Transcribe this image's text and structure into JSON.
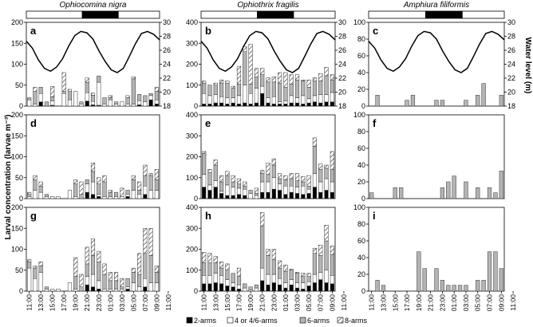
{
  "chart_data": {
    "type": "bar",
    "stacked": true,
    "ylabel": "Larval concentration (larvae m⁻³)",
    "ylabel_right": "Water level (m)",
    "columns": [
      "Ophiocomina nigra",
      "Ophiothrix fragilis",
      "Amphiura filiformis"
    ],
    "x_tick_labels": [
      "11:00",
      "13:00",
      "15:00",
      "17:00",
      "19:00",
      "21:00",
      "23:00",
      "01:00",
      "03:00",
      "05:00",
      "07:00",
      "09:00",
      "11:00"
    ],
    "legend": [
      "2-arms",
      "4 or 4/6-arms",
      "6-arms",
      "8-arms"
    ],
    "colors": {
      "2-arms": "#000000",
      "4 or 4/6-arms": "#ffffff",
      "6-arms": "#b4b4b4",
      "8-arms": "hatched"
    },
    "water_level_axis": {
      "ylim": [
        18,
        30
      ],
      "ticks": [
        18,
        20,
        22,
        24,
        26,
        28,
        30
      ]
    },
    "water_level_curve": [
      27.3,
      26.3,
      24.6,
      23.4,
      23,
      23.6,
      24.8,
      26.6,
      28.1,
      28.7,
      28.5,
      27.6,
      25.9,
      24.4,
      23.2,
      22.8,
      23.4,
      25.1,
      26.9,
      28.4,
      28.7,
      28.3,
      27.5
    ],
    "day_night_bar": [
      "day",
      "night",
      "day"
    ],
    "panels": [
      {
        "letter": "a",
        "ylim": [
          0,
          200
        ],
        "ticks": [
          0,
          50,
          100,
          150,
          200
        ],
        "series": {
          "2-arms": [
            0,
            0,
            10,
            0,
            2,
            0,
            0,
            0,
            0,
            0,
            12,
            3,
            2,
            0,
            0,
            0,
            0,
            0,
            0,
            3,
            0,
            15,
            5
          ],
          "4 or 4/6-arms": [
            15,
            5,
            20,
            0,
            10,
            0,
            30,
            15,
            35,
            5,
            20,
            8,
            55,
            5,
            15,
            5,
            10,
            5,
            5,
            10,
            10,
            10,
            10
          ],
          "6-arms": [
            5,
            30,
            15,
            10,
            10,
            0,
            5,
            20,
            0,
            5,
            25,
            15,
            15,
            15,
            5,
            5,
            0,
            15,
            60,
            15,
            15,
            5,
            20
          ],
          "8-arms": [
            0,
            10,
            0,
            0,
            25,
            0,
            45,
            5,
            0,
            0,
            10,
            5,
            0,
            0,
            5,
            0,
            0,
            5,
            5,
            0,
            0,
            0,
            10
          ]
        }
      },
      {
        "letter": "b",
        "ylim": [
          0,
          400
        ],
        "ticks": [
          0,
          100,
          200,
          300,
          400
        ],
        "series": {
          "2-arms": [
            10,
            10,
            15,
            15,
            10,
            15,
            10,
            15,
            10,
            15,
            60,
            15,
            10,
            10,
            10,
            15,
            15,
            10,
            15,
            20,
            15,
            20,
            20
          ],
          "4 or 4/6-arms": [
            50,
            40,
            40,
            30,
            30,
            25,
            40,
            85,
            50,
            70,
            35,
            25,
            35,
            10,
            15,
            35,
            25,
            40,
            20,
            30,
            40,
            35,
            45
          ],
          "6-arms": [
            50,
            50,
            45,
            65,
            70,
            45,
            55,
            160,
            45,
            55,
            55,
            75,
            70,
            90,
            65,
            55,
            85,
            70,
            55,
            70,
            65,
            90,
            60
          ],
          "8-arms": [
            10,
            0,
            10,
            15,
            10,
            10,
            85,
            25,
            190,
            40,
            30,
            20,
            25,
            50,
            70,
            45,
            25,
            5,
            35,
            15,
            35,
            40,
            25
          ]
        }
      },
      {
        "letter": "c",
        "ylim": [
          0,
          100
        ],
        "ticks": [
          0,
          20,
          40,
          60,
          80,
          100
        ],
        "series": {
          "2-arms": [
            0,
            0,
            0,
            0,
            0,
            0,
            0,
            0,
            0,
            0,
            0,
            0,
            0,
            0,
            0,
            0,
            0,
            0,
            0,
            0,
            0,
            0,
            0
          ],
          "4 or 4/6-arms": [
            0,
            0,
            0,
            0,
            0,
            0,
            0,
            0,
            0,
            0,
            0,
            0,
            0,
            0,
            0,
            0,
            0,
            0,
            0,
            0,
            0,
            0,
            0
          ],
          "6-arms": [
            0,
            13,
            0,
            0,
            0,
            0,
            7,
            13,
            0,
            0,
            0,
            7,
            7,
            0,
            0,
            0,
            7,
            0,
            13,
            27,
            0,
            0,
            13
          ],
          "8-arms": [
            0,
            0,
            0,
            0,
            0,
            0,
            0,
            0,
            0,
            0,
            0,
            0,
            0,
            0,
            0,
            0,
            0,
            0,
            0,
            0,
            0,
            0,
            0
          ]
        }
      },
      {
        "letter": "d",
        "ylim": [
          0,
          200
        ],
        "ticks": [
          0,
          50,
          100,
          150,
          200
        ],
        "series": {
          "2-arms": [
            0,
            0,
            0,
            0,
            0,
            0,
            0,
            0,
            0,
            0,
            15,
            10,
            5,
            0,
            0,
            0,
            0,
            5,
            0,
            0,
            10,
            0,
            0
          ],
          "4 or 4/6-arms": [
            5,
            20,
            15,
            5,
            5,
            5,
            0,
            20,
            5,
            0,
            20,
            30,
            5,
            5,
            5,
            5,
            5,
            5,
            20,
            10,
            20,
            20,
            20
          ],
          "6-arms": [
            5,
            25,
            15,
            5,
            0,
            0,
            0,
            0,
            30,
            10,
            10,
            25,
            25,
            35,
            10,
            10,
            0,
            10,
            25,
            10,
            25,
            35,
            25
          ],
          "8-arms": [
            5,
            10,
            10,
            0,
            0,
            0,
            0,
            0,
            10,
            30,
            0,
            20,
            15,
            15,
            5,
            0,
            20,
            0,
            10,
            20,
            25,
            5,
            25
          ]
        }
      },
      {
        "letter": "e",
        "ylim": [
          0,
          400
        ],
        "ticks": [
          0,
          100,
          200,
          300,
          400
        ],
        "series": {
          "2-arms": [
            55,
            40,
            55,
            25,
            15,
            15,
            20,
            15,
            0,
            0,
            30,
            30,
            45,
            40,
            20,
            30,
            25,
            20,
            25,
            55,
            30,
            40,
            30
          ],
          "4 or 4/6-arms": [
            60,
            25,
            30,
            10,
            50,
            40,
            30,
            30,
            25,
            15,
            50,
            50,
            55,
            30,
            40,
            30,
            30,
            40,
            20,
            65,
            50,
            55,
            50
          ],
          "6-arms": [
            100,
            60,
            75,
            45,
            45,
            25,
            20,
            15,
            15,
            10,
            40,
            35,
            60,
            25,
            30,
            35,
            30,
            20,
            15,
            130,
            60,
            50,
            60
          ],
          "8-arms": [
            10,
            15,
            25,
            30,
            20,
            30,
            25,
            20,
            0,
            25,
            15,
            55,
            30,
            25,
            20,
            25,
            35,
            25,
            50,
            40,
            25,
            15,
            85
          ]
        }
      },
      {
        "letter": "f",
        "ylim": [
          0,
          100
        ],
        "ticks": [
          0,
          20,
          40,
          60,
          80,
          100
        ],
        "series": {
          "2-arms": [
            0,
            0,
            0,
            0,
            0,
            0,
            0,
            0,
            0,
            0,
            0,
            0,
            0,
            0,
            0,
            0,
            0,
            0,
            0,
            0,
            0,
            0,
            0
          ],
          "4 or 4/6-arms": [
            0,
            0,
            0,
            0,
            0,
            0,
            0,
            0,
            0,
            0,
            0,
            0,
            0,
            0,
            0,
            0,
            0,
            0,
            0,
            0,
            0,
            0,
            0
          ],
          "6-arms": [
            7,
            0,
            0,
            0,
            13,
            13,
            0,
            0,
            0,
            0,
            0,
            0,
            13,
            20,
            27,
            0,
            20,
            0,
            13,
            0,
            13,
            7,
            33
          ],
          "8-arms": [
            0,
            0,
            0,
            0,
            0,
            0,
            0,
            0,
            0,
            0,
            0,
            0,
            0,
            0,
            0,
            0,
            0,
            0,
            0,
            0,
            0,
            0,
            0
          ]
        }
      },
      {
        "letter": "g",
        "ylim": [
          0,
          200
        ],
        "ticks": [
          0,
          50,
          100,
          150,
          200
        ],
        "series": {
          "2-arms": [
            0,
            0,
            0,
            0,
            0,
            0,
            0,
            0,
            0,
            0,
            15,
            10,
            5,
            0,
            0,
            0,
            0,
            5,
            0,
            0,
            10,
            0,
            0
          ],
          "4 or 4/6-arms": [
            55,
            30,
            45,
            5,
            5,
            5,
            0,
            20,
            5,
            0,
            20,
            30,
            20,
            5,
            5,
            5,
            5,
            5,
            20,
            10,
            20,
            20,
            20
          ],
          "6-arms": [
            15,
            25,
            15,
            5,
            0,
            0,
            0,
            0,
            30,
            10,
            30,
            45,
            45,
            35,
            20,
            20,
            5,
            20,
            25,
            30,
            60,
            65,
            25
          ],
          "8-arms": [
            5,
            5,
            10,
            0,
            0,
            0,
            0,
            0,
            45,
            30,
            40,
            40,
            25,
            25,
            20,
            20,
            20,
            0,
            10,
            50,
            60,
            65,
            15
          ]
        }
      },
      {
        "letter": "h",
        "ylim": [
          0,
          400
        ],
        "ticks": [
          0,
          100,
          200,
          300,
          400
        ],
        "series": {
          "2-arms": [
            35,
            35,
            40,
            35,
            25,
            20,
            10,
            0,
            0,
            0,
            50,
            30,
            40,
            30,
            15,
            30,
            15,
            10,
            25,
            40,
            55,
            40,
            35
          ],
          "4 or 4/6-arms": [
            40,
            40,
            45,
            40,
            30,
            20,
            20,
            15,
            5,
            15,
            60,
            50,
            40,
            30,
            25,
            25,
            25,
            30,
            20,
            40,
            35,
            60,
            40
          ],
          "6-arms": [
            60,
            60,
            50,
            35,
            45,
            45,
            40,
            20,
            15,
            15,
            200,
            90,
            70,
            50,
            55,
            45,
            45,
            30,
            25,
            100,
            80,
            140,
            100
          ],
          "8-arms": [
            50,
            45,
            30,
            30,
            30,
            0,
            40,
            0,
            0,
            0,
            65,
            30,
            50,
            35,
            30,
            5,
            5,
            15,
            15,
            25,
            50,
            75,
            40
          ]
        }
      },
      {
        "letter": "i",
        "ylim": [
          0,
          100
        ],
        "ticks": [
          0,
          20,
          40,
          60,
          80,
          100
        ],
        "series": {
          "2-arms": [
            0,
            0,
            0,
            0,
            0,
            0,
            0,
            0,
            0,
            0,
            0,
            0,
            0,
            0,
            0,
            0,
            0,
            0,
            0,
            0,
            0,
            0,
            0
          ],
          "4 or 4/6-arms": [
            0,
            0,
            0,
            0,
            0,
            0,
            0,
            0,
            0,
            0,
            0,
            0,
            0,
            0,
            0,
            0,
            0,
            0,
            0,
            0,
            0,
            0,
            0
          ],
          "6-arms": [
            0,
            13,
            7,
            0,
            0,
            0,
            0,
            0,
            47,
            27,
            0,
            27,
            13,
            7,
            7,
            7,
            7,
            0,
            13,
            13,
            47,
            47,
            27
          ],
          "8-arms": [
            0,
            0,
            0,
            0,
            0,
            0,
            0,
            0,
            0,
            0,
            0,
            0,
            0,
            0,
            0,
            0,
            0,
            0,
            0,
            0,
            0,
            0,
            0
          ]
        }
      }
    ]
  }
}
